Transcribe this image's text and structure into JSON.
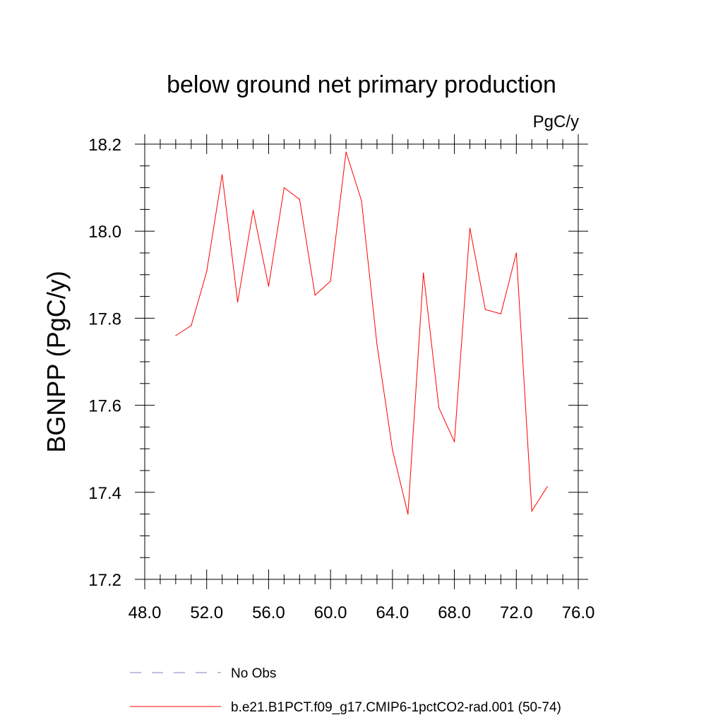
{
  "chart_data": {
    "type": "line",
    "title": "below ground net primary production",
    "units_label": "PgC/y",
    "xlabel": "",
    "ylabel": "BGNPP  (PgC/y)",
    "xlim": [
      48.0,
      76.0
    ],
    "ylim": [
      17.2,
      18.2
    ],
    "x_ticks": [
      "48.0",
      "52.0",
      "56.0",
      "60.0",
      "64.0",
      "68.0",
      "72.0",
      "76.0"
    ],
    "y_ticks": [
      "17.2",
      "17.4",
      "17.6",
      "17.8",
      "18.0",
      "18.2"
    ],
    "grid": false,
    "legend_position": "bottom",
    "series": [
      {
        "name": "b.e21.B1PCT.f09_g17.CMIP6-1pctCO2-rad.001 (50-74)",
        "color": "#ff0000",
        "style": "solid",
        "x": [
          50,
          51,
          52,
          53,
          54,
          55,
          56,
          57,
          58,
          59,
          60,
          61,
          62,
          63,
          64,
          65,
          66,
          67,
          68,
          69,
          70,
          71,
          72,
          73,
          74
        ],
        "y": [
          17.76,
          17.783,
          17.907,
          18.13,
          17.837,
          18.048,
          17.873,
          18.1,
          18.073,
          17.853,
          17.885,
          18.182,
          18.07,
          17.74,
          17.497,
          17.35,
          17.904,
          17.594,
          17.516,
          18.007,
          17.82,
          17.81,
          17.95,
          17.357,
          17.413
        ]
      }
    ],
    "legend": [
      {
        "label": "No Obs",
        "color": "#8080c0",
        "style": "dashed"
      },
      {
        "label": "b.e21.B1PCT.f09_g17.CMIP6-1pctCO2-rad.001 (50-74)",
        "color": "#ff0000",
        "style": "solid"
      }
    ]
  }
}
